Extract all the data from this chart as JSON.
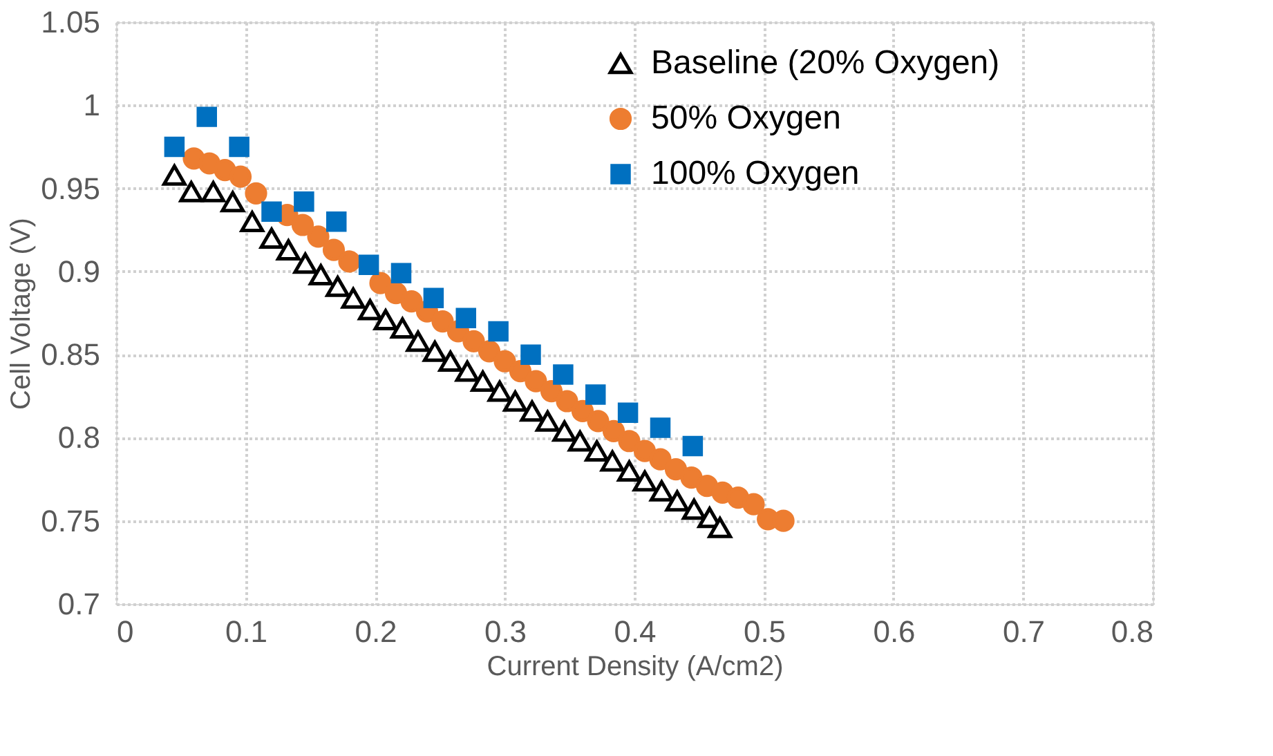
{
  "chart_data": {
    "type": "scatter",
    "xlabel": "Current Density (A/cm2)",
    "ylabel": "Cell Voltage (V)",
    "xlim": [
      0,
      0.8
    ],
    "xticks": [
      0,
      0.1,
      0.2,
      0.3,
      0.4,
      0.5,
      0.6,
      0.7,
      0.8
    ],
    "ylim": [
      0.7,
      1.05
    ],
    "yticks": [
      0.7,
      0.75,
      0.8,
      0.85,
      0.9,
      0.95,
      1,
      1.05
    ],
    "grid": true,
    "legend": "top right",
    "series": [
      {
        "name": "Baseline (20% Oxygen)",
        "color": "#000000",
        "marker": "triangle",
        "x": [
          0.045,
          0.058,
          0.075,
          0.09,
          0.105,
          0.12,
          0.133,
          0.146,
          0.158,
          0.171,
          0.183,
          0.196,
          0.208,
          0.221,
          0.233,
          0.246,
          0.258,
          0.271,
          0.283,
          0.296,
          0.308,
          0.321,
          0.333,
          0.346,
          0.358,
          0.371,
          0.383,
          0.396,
          0.408,
          0.421,
          0.433,
          0.446,
          0.458,
          0.466
        ],
        "values": [
          0.958,
          0.948,
          0.948,
          0.942,
          0.93,
          0.92,
          0.913,
          0.905,
          0.898,
          0.891,
          0.884,
          0.877,
          0.871,
          0.866,
          0.858,
          0.852,
          0.846,
          0.84,
          0.834,
          0.828,
          0.822,
          0.816,
          0.81,
          0.804,
          0.798,
          0.792,
          0.786,
          0.78,
          0.774,
          0.768,
          0.762,
          0.757,
          0.752,
          0.746
        ]
      },
      {
        "name": "50% Oxygen",
        "color": "#ed7d31",
        "marker": "circle",
        "x": [
          0.06,
          0.072,
          0.084,
          0.096,
          0.108,
          0.12,
          0.132,
          0.144,
          0.156,
          0.168,
          0.18,
          0.192,
          0.204,
          0.216,
          0.228,
          0.24,
          0.252,
          0.264,
          0.276,
          0.288,
          0.3,
          0.312,
          0.324,
          0.336,
          0.348,
          0.36,
          0.372,
          0.384,
          0.396,
          0.408,
          0.42,
          0.432,
          0.444,
          0.456,
          0.468,
          0.48,
          0.492,
          0.503,
          0.515
        ],
        "values": [
          0.968,
          0.965,
          0.961,
          0.957,
          0.947,
          null,
          0.934,
          0.928,
          0.921,
          0.913,
          0.906,
          null,
          0.893,
          0.887,
          0.882,
          0.876,
          0.87,
          0.864,
          0.858,
          0.852,
          0.846,
          0.84,
          0.834,
          0.828,
          0.822,
          0.816,
          0.81,
          0.804,
          0.798,
          0.792,
          0.787,
          0.781,
          0.776,
          0.771,
          0.767,
          0.764,
          0.76,
          0.751,
          0.75
        ]
      },
      {
        "name": "100% Oxygen",
        "color": "#0070c0",
        "marker": "square",
        "x": [
          0.045,
          0.07,
          0.095,
          0.12,
          0.145,
          0.17,
          0.195,
          0.22,
          0.245,
          0.27,
          0.295,
          0.32,
          0.345,
          0.37,
          0.395,
          0.42,
          0.445
        ],
        "values": [
          0.975,
          0.993,
          0.975,
          0.936,
          0.942,
          0.93,
          0.904,
          0.899,
          0.884,
          0.872,
          0.864,
          0.85,
          0.838,
          0.826,
          0.815,
          0.806,
          0.795
        ]
      }
    ]
  }
}
